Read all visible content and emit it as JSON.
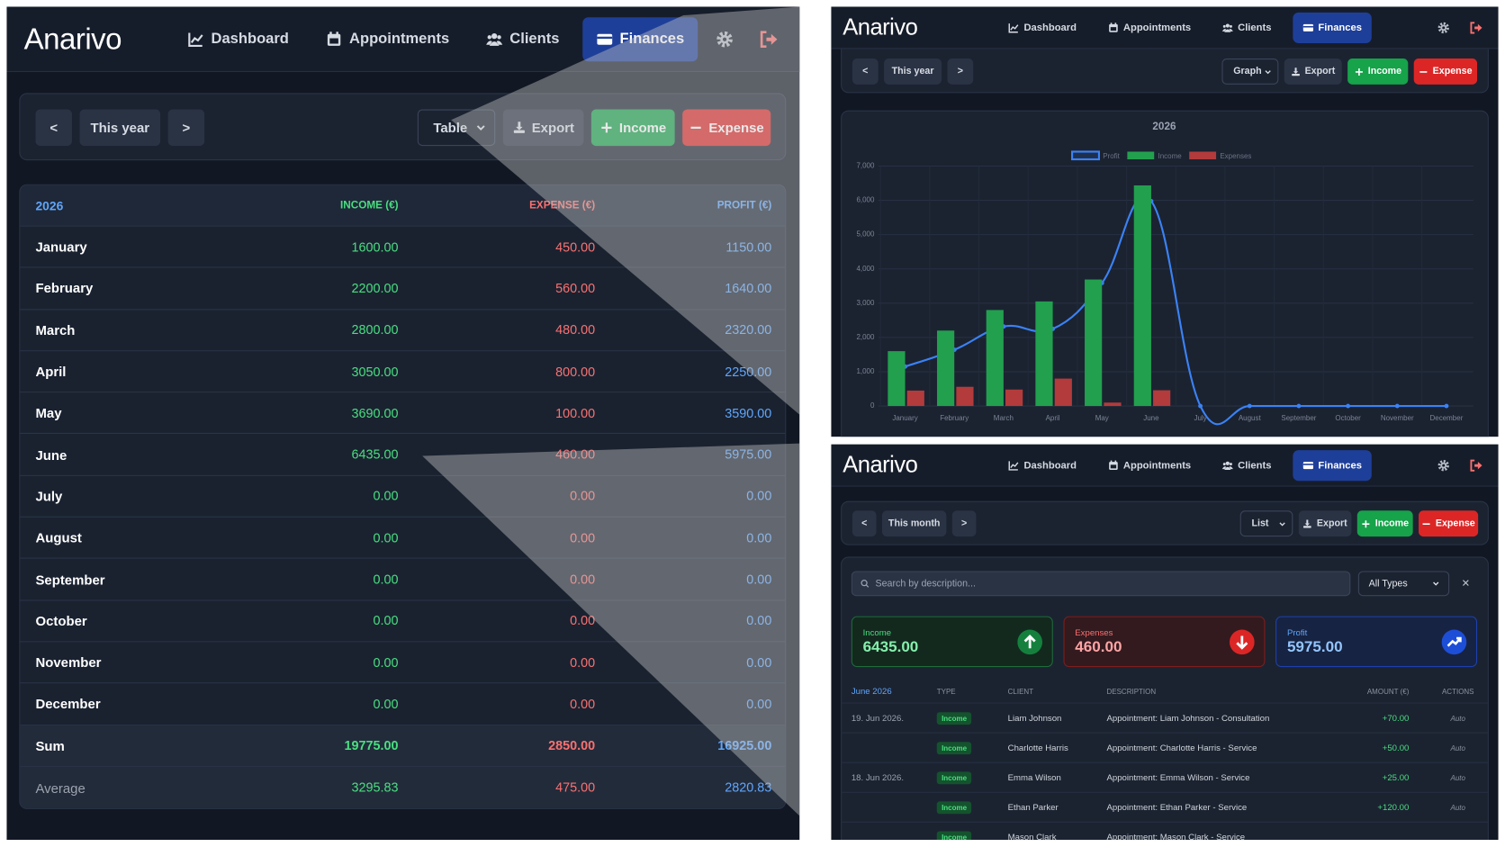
{
  "app": {
    "brand": "Anarivo",
    "nav": [
      "Dashboard",
      "Appointments",
      "Clients",
      "Finances"
    ],
    "buttons": {
      "prev": "<",
      "next": ">",
      "export": "Export",
      "income": "Income",
      "expense": "Expense"
    }
  },
  "table_view": {
    "period": "This year",
    "view": "Table",
    "table": {
      "header": [
        "2026",
        "INCOME (€)",
        "EXPENSE (€)",
        "PROFIT (€)"
      ],
      "rows": [
        [
          "January",
          "1600.00",
          "450.00",
          "1150.00"
        ],
        [
          "February",
          "2200.00",
          "560.00",
          "1640.00"
        ],
        [
          "March",
          "2800.00",
          "480.00",
          "2320.00"
        ],
        [
          "April",
          "3050.00",
          "800.00",
          "2250.00"
        ],
        [
          "May",
          "3690.00",
          "100.00",
          "3590.00"
        ],
        [
          "June",
          "6435.00",
          "460.00",
          "5975.00"
        ],
        [
          "July",
          "0.00",
          "0.00",
          "0.00"
        ],
        [
          "August",
          "0.00",
          "0.00",
          "0.00"
        ],
        [
          "September",
          "0.00",
          "0.00",
          "0.00"
        ],
        [
          "October",
          "0.00",
          "0.00",
          "0.00"
        ],
        [
          "November",
          "0.00",
          "0.00",
          "0.00"
        ],
        [
          "December",
          "0.00",
          "0.00",
          "0.00"
        ],
        [
          "Sum",
          "19775.00",
          "2850.00",
          "16925.00"
        ],
        [
          "Average",
          "3295.83",
          "475.00",
          "2820.83"
        ]
      ]
    }
  },
  "graph_view": {
    "period": "This year",
    "view": "Graph"
  },
  "chart_data": {
    "type": "bar",
    "title": "2026",
    "categories": [
      "January",
      "February",
      "March",
      "April",
      "May",
      "June",
      "July",
      "August",
      "September",
      "October",
      "November",
      "December"
    ],
    "series": [
      {
        "name": "Profit",
        "type": "line",
        "color": "#3b82f6",
        "values": [
          1150,
          1640,
          2320,
          2250,
          3590,
          5975,
          0,
          0,
          0,
          0,
          0,
          0
        ]
      },
      {
        "name": "Income",
        "type": "bar",
        "color": "#22a04e",
        "values": [
          1600,
          2200,
          2800,
          3050,
          3690,
          6435,
          0,
          0,
          0,
          0,
          0,
          0
        ]
      },
      {
        "name": "Expenses",
        "type": "bar",
        "color": "#b33b3b",
        "values": [
          450,
          560,
          480,
          800,
          100,
          460,
          0,
          0,
          0,
          0,
          0,
          0
        ]
      }
    ],
    "ylim": [
      0,
      7000
    ],
    "yticks": [
      0,
      {
        "value": 1000,
        "label": "1,000"
      },
      {
        "value": 2000,
        "label": "2,000"
      },
      {
        "value": 3000,
        "label": "3,000"
      },
      {
        "value": 4000,
        "label": "4,000"
      },
      {
        "value": 5000,
        "label": "5,000"
      },
      {
        "value": 6000,
        "label": "6,000"
      },
      {
        "value": 7000,
        "label": "7,000"
      }
    ],
    "grid": true,
    "legend": "top"
  },
  "list_view": {
    "period": "This month",
    "view": "List",
    "search": "Search by description...",
    "filter": "All Types",
    "clear": "×",
    "summary": [
      {
        "label": "Income",
        "value": "6435.00"
      },
      {
        "label": "Expenses",
        "value": "460.00"
      },
      {
        "label": "Profit",
        "value": "5975.00"
      }
    ],
    "table": {
      "header": [
        "June 2026",
        "TYPE",
        "CLIENT",
        "DESCRIPTION",
        "AMOUNT (€)",
        "ACTIONS"
      ],
      "rows": [
        {
          "date": "19. Jun 2026.",
          "type": "Income",
          "client": "Liam Johnson",
          "description": "Appointment: Liam Johnson - Consultation",
          "amount": "+70.00",
          "action": "Auto"
        },
        {
          "type": "Income",
          "client": "Charlotte Harris",
          "description": "Appointment: Charlotte Harris - Service",
          "amount": "+50.00",
          "action": "Auto"
        },
        {
          "date": "18. Jun 2026.",
          "type": "Income",
          "client": "Emma Wilson",
          "description": "Appointment: Emma Wilson - Service",
          "amount": "+25.00",
          "action": "Auto"
        },
        {
          "type": "Income",
          "client": "Ethan Parker",
          "description": "Appointment: Ethan Parker - Service",
          "amount": "+120.00",
          "action": "Auto"
        },
        {
          "type": "Income",
          "client": "Mason Clark",
          "description": "Appointment: Mason Clark - Service"
        }
      ]
    }
  }
}
